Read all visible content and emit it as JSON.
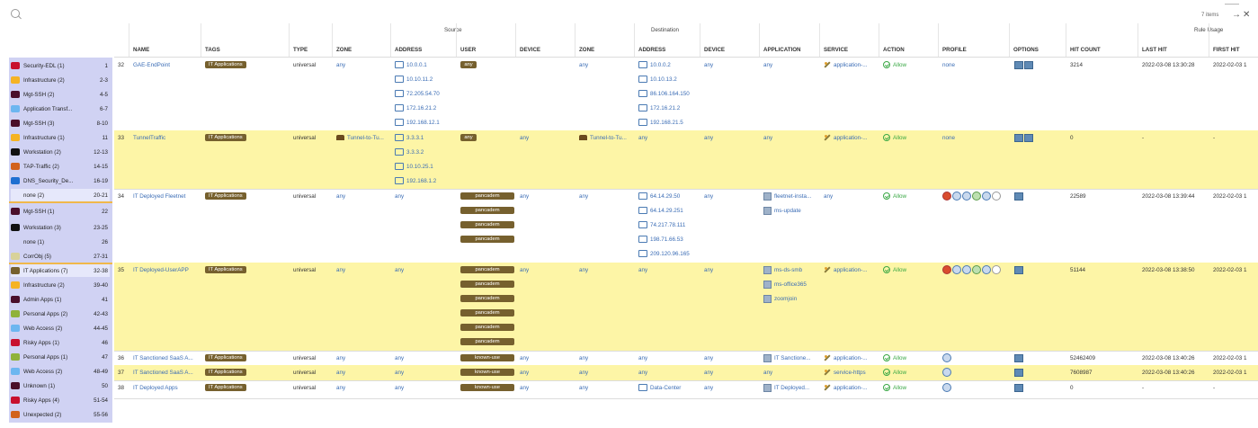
{
  "topbar": {
    "items_count": "7 items"
  },
  "header": {
    "groups": {
      "source": "Source",
      "destination": "Destination",
      "rule_usage": "Rule Usage"
    },
    "columns": {
      "name": "NAME",
      "tags": "TAGS",
      "type": "TYPE",
      "src_zone": "ZONE",
      "src_address": "ADDRESS",
      "user": "USER",
      "src_device": "DEVICE",
      "dst_zone": "ZONE",
      "dst_address": "ADDRESS",
      "dst_device": "DEVICE",
      "application": "APPLICATION",
      "service": "SERVICE",
      "action": "ACTION",
      "profile": "PROFILE",
      "options": "OPTIONS",
      "hit_count": "HIT COUNT",
      "last_hit": "LAST HIT",
      "first_hit": "FIRST HIT"
    }
  },
  "sidebar": {
    "items": [
      {
        "label": "Security-EDL (1)",
        "range": "1",
        "color": "#c8102e"
      },
      {
        "label": "Infrastructure (2)",
        "range": "2-3",
        "color": "#f5b323"
      },
      {
        "label": "Mgt-SSH (2)",
        "range": "4-5",
        "color": "#4a0f2a"
      },
      {
        "label": "Application Transf...",
        "range": "6-7",
        "color": "#6cb6f0"
      },
      {
        "label": "Mgt-SSH (3)",
        "range": "8-10",
        "color": "#4a0f2a"
      },
      {
        "label": "Infrastructure (1)",
        "range": "11",
        "color": "#f5b323"
      },
      {
        "label": "Workstation (2)",
        "range": "12-13",
        "color": "#111111"
      },
      {
        "label": "TAP-Traffic (2)",
        "range": "14-15",
        "color": "#d2621c"
      },
      {
        "label": "DNS_Security_De...",
        "range": "16-19",
        "color": "#1f6fd1"
      },
      {
        "label": "none (2)",
        "range": "20-21",
        "color": ""
      },
      {
        "label": "Mgt-SSH (1)",
        "range": "22",
        "color": "#4a0f2a"
      },
      {
        "label": "Workstation (3)",
        "range": "23-25",
        "color": "#111111"
      },
      {
        "label": "none (1)",
        "range": "26",
        "color": ""
      },
      {
        "label": "CorrObj (5)",
        "range": "27-31",
        "color": "#d8d29a"
      },
      {
        "label": "IT Applications (7)",
        "range": "32-38",
        "color": "#76602e"
      },
      {
        "label": "Infrastructure (2)",
        "range": "39-40",
        "color": "#f5b323"
      },
      {
        "label": "Admin Apps (1)",
        "range": "41",
        "color": "#4a0f2a"
      },
      {
        "label": "Personal Apps (2)",
        "range": "42-43",
        "color": "#8fb23a"
      },
      {
        "label": "Web Access (2)",
        "range": "44-45",
        "color": "#6cb6f0"
      },
      {
        "label": "Risky Apps (1)",
        "range": "46",
        "color": "#c8102e"
      },
      {
        "label": "Personal Apps (1)",
        "range": "47",
        "color": "#8fb23a"
      },
      {
        "label": "Web Access (2)",
        "range": "48-49",
        "color": "#6cb6f0"
      },
      {
        "label": "Unknown (1)",
        "range": "50",
        "color": "#4a0f2a"
      },
      {
        "label": "Risky Apps (4)",
        "range": "51-54",
        "color": "#c8102e"
      },
      {
        "label": "Unexpected (2)",
        "range": "55-56",
        "color": "#d2621c"
      }
    ]
  },
  "rules": [
    {
      "num": "32",
      "name": "GAE-EndPoint",
      "tag": "IT Applications",
      "type": "universal",
      "src_zone": "any",
      "src_address": [
        "10.0.0.1",
        "10.10.11.2",
        "72.205.54.70",
        "172.16.21.2",
        "192.168.12.1"
      ],
      "users": [
        "any"
      ],
      "src_device": "",
      "dst_zone": "any",
      "dst_address": [
        "10.0.0.2",
        "10.10.13.2",
        "86.106.164.150",
        "172.16.21.2",
        "192.168.21.5"
      ],
      "dst_device": "any",
      "applications": [
        "any"
      ],
      "service": "application-...",
      "action": "Allow",
      "profile": "none",
      "hit_count": "3214",
      "last_hit": "2022-03-08 13:30:28",
      "first_hit": "2022-02-03 1",
      "highlight": false
    },
    {
      "num": "33",
      "name": "TunnelTraffic",
      "tag": "IT Applications",
      "type": "universal",
      "src_zone": "Tunnel-to-Tu...",
      "src_address": [
        "3.3.3.1",
        "3.3.3.2",
        "10.10.25.1",
        "192.168.1.2"
      ],
      "users": [
        "any"
      ],
      "src_device": "any",
      "dst_zone": "Tunnel-to-Tu...",
      "dst_address": [
        "any"
      ],
      "dst_device": "any",
      "applications": [
        "any"
      ],
      "service": "application-...",
      "action": "Allow",
      "profile": "none",
      "hit_count": "0",
      "last_hit": "-",
      "first_hit": "-",
      "highlight": true
    },
    {
      "num": "34",
      "name": "IT Deployed Fleetnet",
      "tag": "IT Applications",
      "type": "universal",
      "src_zone": "any",
      "src_address": [
        "any"
      ],
      "users": [
        "pancadem",
        "pancadem",
        "pancadem",
        "pancadem"
      ],
      "src_device": "any",
      "dst_zone": "any",
      "dst_address": [
        "64.14.29.50",
        "64.14.29.251",
        "74.217.78.111",
        "198.71.66.53",
        "209.120.96.165"
      ],
      "dst_device": "any",
      "applications": [
        "fleetnet-insta...",
        "ms-update"
      ],
      "service": "any",
      "action": "Allow",
      "profile": "",
      "hit_count": "22589",
      "last_hit": "2022-03-08 13:39:44",
      "first_hit": "2022-02-03 1",
      "highlight": false
    },
    {
      "num": "35",
      "name": "IT Deployed-UserAPP",
      "tag": "IT Applications",
      "type": "universal",
      "src_zone": "any",
      "src_address": [
        "any"
      ],
      "users": [
        "pancadem",
        "pancadem",
        "pancadem",
        "pancadem",
        "pancadem",
        "pancadem"
      ],
      "src_device": "any",
      "dst_zone": "any",
      "dst_address": [
        "any"
      ],
      "dst_device": "any",
      "applications": [
        "ms-ds-smb",
        "ms-office365",
        "zoomjoin"
      ],
      "service": "application-...",
      "action": "Allow",
      "profile": "",
      "hit_count": "51144",
      "last_hit": "2022-03-08 13:38:50",
      "first_hit": "2022-02-03 1",
      "highlight": true
    },
    {
      "num": "36",
      "name": "IT Sanctioned SaaS A...",
      "tag": "IT Applications",
      "type": "universal",
      "src_zone": "any",
      "src_address": [
        "any"
      ],
      "users": [
        "known-use"
      ],
      "src_device": "any",
      "dst_zone": "any",
      "dst_address": [
        "any"
      ],
      "dst_device": "any",
      "applications": [
        "IT Sanctione..."
      ],
      "service": "application-...",
      "action": "Allow",
      "profile": "",
      "hit_count": "52462409",
      "last_hit": "2022-03-08 13:40:26",
      "first_hit": "2022-02-03 1",
      "highlight": false
    },
    {
      "num": "37",
      "name": "IT Sanctioned SaaS A...",
      "tag": "IT Applications",
      "type": "universal",
      "src_zone": "any",
      "src_address": [
        "any"
      ],
      "users": [
        "known-use"
      ],
      "src_device": "any",
      "dst_zone": "any",
      "dst_address": [
        "any"
      ],
      "dst_device": "any",
      "applications": [
        "any"
      ],
      "service": "service-https",
      "action": "Allow",
      "profile": "",
      "hit_count": "7608987",
      "last_hit": "2022-03-08 13:40:26",
      "first_hit": "2022-02-03 1",
      "highlight": true
    },
    {
      "num": "38",
      "name": "IT Deployed Apps",
      "tag": "IT Applications",
      "type": "universal",
      "src_zone": "any",
      "src_address": [
        "any"
      ],
      "users": [
        "known-use"
      ],
      "src_device": "any",
      "dst_zone": "any",
      "dst_address": [
        "Data-Center"
      ],
      "dst_device": "any",
      "applications": [
        "IT Deployed..."
      ],
      "service": "application-...",
      "action": "Allow",
      "profile": "",
      "hit_count": "0",
      "last_hit": "-",
      "first_hit": "-",
      "highlight": false
    }
  ]
}
